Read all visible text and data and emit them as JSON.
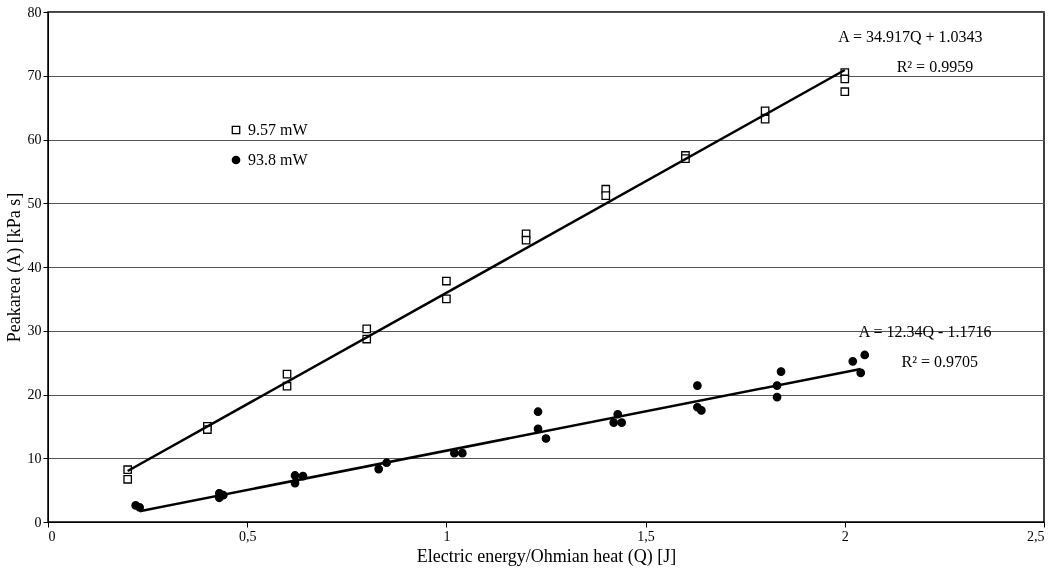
{
  "chart_data": {
    "type": "scatter",
    "xlabel": "Electric energy/Ohmian heat (Q) [J]",
    "ylabel": "Peakarea (A) [kPa s]",
    "xlim": [
      0,
      2.5
    ],
    "ylim": [
      0,
      80
    ],
    "xticks": [
      0,
      {
        "value": 0.5,
        "label": "0,5"
      },
      1,
      {
        "value": 1.5,
        "label": "1,5"
      },
      2,
      {
        "value": 2.5,
        "label": "2,5"
      }
    ],
    "yticks": [
      0,
      10,
      20,
      30,
      40,
      50,
      60,
      70,
      80
    ],
    "grid": "y",
    "legend": "top left",
    "series": [
      {
        "name": "9.57 mW",
        "color": "#000000",
        "marker": "square",
        "x": [
          0.2,
          0.2,
          0.4,
          0.4,
          0.6,
          0.6,
          0.8,
          0.8,
          1.0,
          1.0,
          1.2,
          1.2,
          1.4,
          1.4,
          1.6,
          1.6,
          1.8,
          1.8,
          2.0,
          2.0,
          2.0
        ],
        "values": [
          8.2,
          6.7,
          15,
          14.5,
          23.2,
          21.3,
          30.3,
          28.7,
          37.8,
          35,
          45.2,
          44.2,
          52.2,
          51.2,
          57.5,
          57,
          64.5,
          63.2,
          70.5,
          69.5,
          67.5
        ]
      },
      {
        "name": "93.8 mW",
        "color": "#000000",
        "marker": "circle",
        "x": [
          0.22,
          0.23,
          0.43,
          0.43,
          0.44,
          0.62,
          0.62,
          0.64,
          0.83,
          0.85,
          1.02,
          1.04,
          1.23,
          1.23,
          1.25,
          1.42,
          1.43,
          1.44,
          1.63,
          1.63,
          1.64,
          1.83,
          1.83,
          1.84,
          2.02,
          2.04,
          2.05
        ],
        "values": [
          2.6,
          2.3,
          4.5,
          3.8,
          4.2,
          7.3,
          6.1,
          7.2,
          8.3,
          9.3,
          10.8,
          10.8,
          17.3,
          14.6,
          13.1,
          15.6,
          16.9,
          15.6,
          21.4,
          18,
          17.5,
          19.6,
          21.4,
          23.6,
          25.2,
          23.4,
          26.2
        ]
      },
      {
        "type": "line",
        "color": "#000000",
        "marker": "none",
        "x": [
          0.2,
          2.0
        ],
        "values": [
          8.0,
          70.9
        ]
      },
      {
        "type": "line",
        "color": "#000000",
        "marker": "none",
        "x": [
          0.23,
          2.04
        ],
        "values": [
          1.7,
          24.0
        ]
      }
    ],
    "annotations": [
      "A = 34.917Q + 1.0343",
      "R² = 0.9959",
      "A = 12.34Q - 1.1716",
      "R² = 0.9705"
    ]
  }
}
